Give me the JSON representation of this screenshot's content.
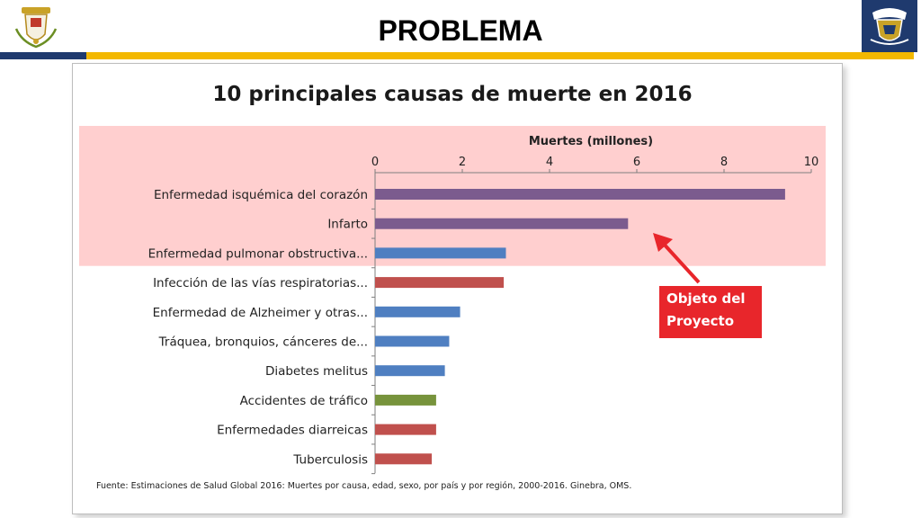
{
  "header": {
    "title": "PROBLEMA",
    "stripe_colors": {
      "navy": "#1f3a6e",
      "gold": "#f3b800"
    },
    "left_logo": "navy-coat-of-arms-icon",
    "right_logo": "naval-school-shield-icon"
  },
  "chart_data": {
    "type": "bar",
    "orientation": "horizontal",
    "title": "10 principales causas de muerte en 2016",
    "xlabel": "Muertes (millones)",
    "xlim": [
      0,
      10
    ],
    "xticks": [
      "0",
      "2",
      "4",
      "6",
      "8",
      "10"
    ],
    "grid": false,
    "categories": [
      "Enfermedad isquémica del corazón",
      "Infarto",
      "Enfermedad pulmonar obstructiva...",
      "Infección de las vías respiratorias...",
      "Enfermedad de Alzheimer y otras...",
      "Tráquea, bronquios, cánceres de...",
      "Diabetes melitus",
      "Accidentes de tráfico",
      "Enfermedades diarreicas",
      "Tuberculosis"
    ],
    "values": [
      9.4,
      5.8,
      3.0,
      2.95,
      1.95,
      1.7,
      1.6,
      1.4,
      1.4,
      1.3
    ],
    "bar_colors": [
      "#7b5b8e",
      "#7b5b8e",
      "#4f7fc1",
      "#c0504d",
      "#4f7fc1",
      "#4f7fc1",
      "#4f7fc1",
      "#77933c",
      "#c0504d",
      "#c0504d"
    ],
    "highlight_color": "#ffcfcf",
    "highlighted_categories": [
      "Enfermedad isquémica del corazón",
      "Infarto"
    ]
  },
  "annotation": {
    "text_line1": "Objeto del",
    "text_line2": "Proyecto",
    "color": "#e8262b"
  },
  "source": "Fuente: Estimaciones de Salud Global 2016: Muertes por causa, edad, sexo, por país y por región, 2000-2016. Ginebra, OMS."
}
